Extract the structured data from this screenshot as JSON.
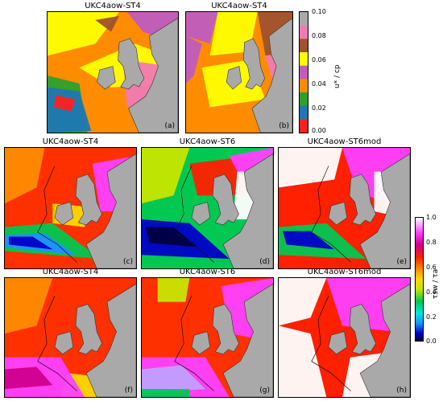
{
  "panels": [
    {
      "title": "UKC4aow-ST4",
      "label": "(a)",
      "scheme": "disc1"
    },
    {
      "title": "UKC4aow-ST4",
      "label": "(b)",
      "scheme": "disc2"
    },
    {
      "title": "UKC4aow-ST4",
      "label": "(c)",
      "scheme": "c"
    },
    {
      "title": "UKC4aow-ST6",
      "label": "(d)",
      "scheme": "d"
    },
    {
      "title": "UKC4aow-ST6mod",
      "label": "(e)",
      "scheme": "e"
    },
    {
      "title": "UKC4aow-ST4",
      "label": "(f)",
      "scheme": "f"
    },
    {
      "title": "UKC4aow-ST6",
      "label": "(g)",
      "scheme": "g"
    },
    {
      "title": "UKC4aow-ST6mod",
      "label": "(h)",
      "scheme": "h"
    }
  ],
  "colorbar_discrete": {
    "label": "u* / cp",
    "ticks": [
      "0.10",
      "0.08",
      "0.06",
      "0.04",
      "0.02",
      "0.00"
    ],
    "colors": [
      "#a9a9a9",
      "#f07ab4",
      "#a0522d",
      "#ffff00",
      "#c05cc0",
      "#ff8c00",
      "#2ca02c",
      "#1f77b4",
      "#ff2020"
    ]
  },
  "colorbar_continuous": {
    "label": "τsw / τa",
    "ticks": [
      "1.0",
      "0.8",
      "0.6",
      "0.4",
      "0.2",
      "0.0"
    ]
  },
  "colors": {
    "land": "#a9a9a9",
    "background": "#ffffff"
  }
}
